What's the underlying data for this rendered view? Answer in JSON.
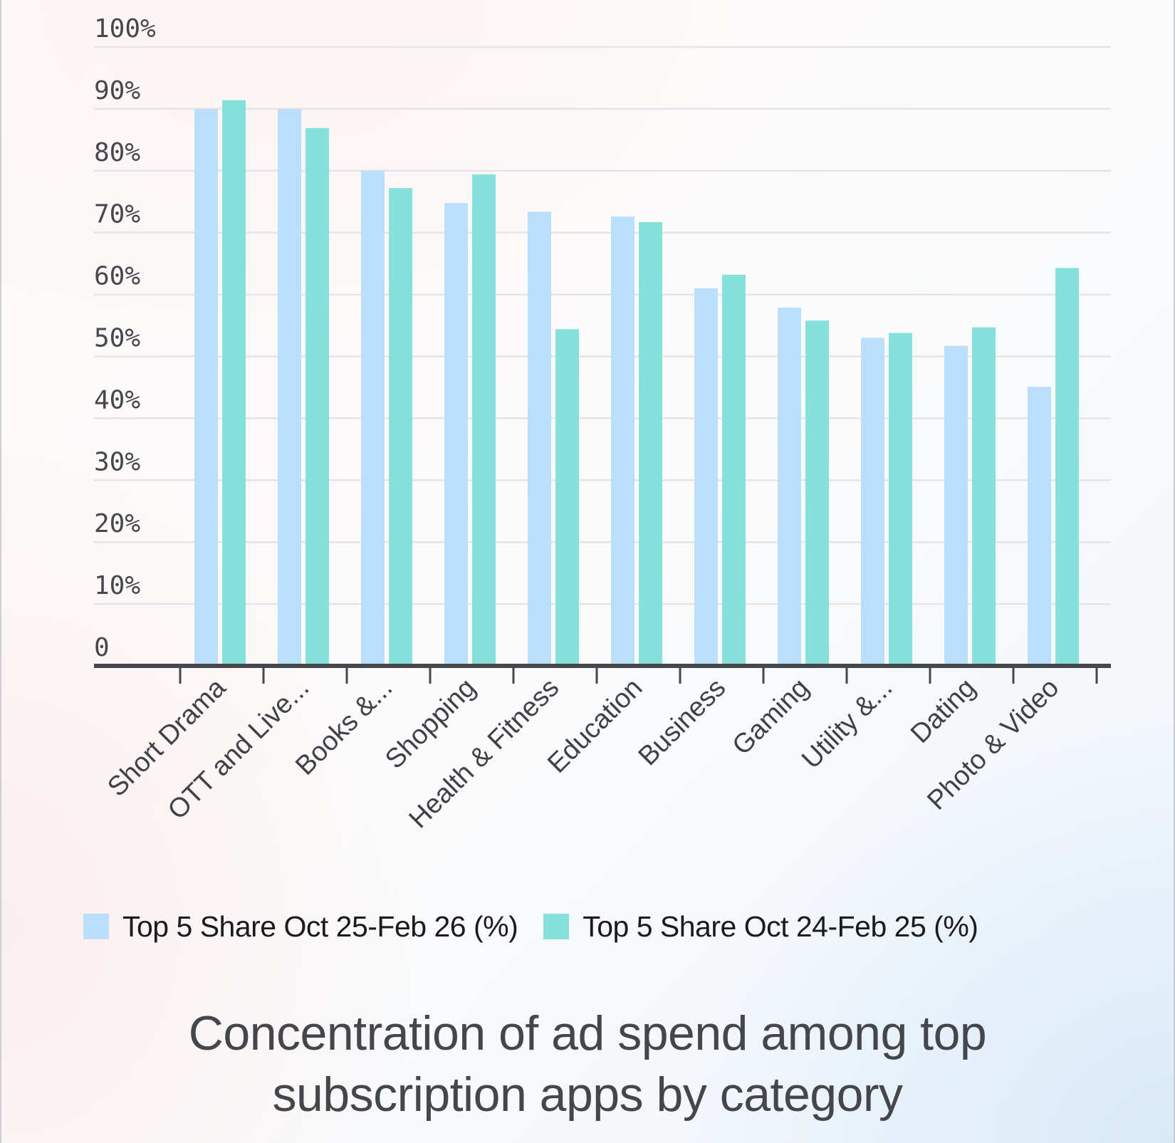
{
  "chart_data": {
    "type": "bar",
    "title": "Concentration of ad spend among top subscription apps by category",
    "title_lines": [
      "Concentration of ad spend among top",
      "subscription apps by category"
    ],
    "xlabel": "",
    "ylabel": "",
    "ylim": [
      0,
      100
    ],
    "yticks": [
      0,
      10,
      20,
      30,
      40,
      50,
      60,
      70,
      80,
      90,
      100
    ],
    "ytick_labels": [
      "0",
      "10%",
      "20%",
      "30%",
      "40%",
      "50%",
      "60%",
      "70%",
      "80%",
      "90%",
      "100%"
    ],
    "grid": true,
    "legend_position": "bottom",
    "categories": [
      "Short Drama",
      "OTT and Live...",
      "Books &...",
      "Shopping",
      "Health & Fitness",
      "Education",
      "Business",
      "Gaming",
      "Utility &...",
      "Dating",
      "Photo & Video"
    ],
    "series": [
      {
        "name": "Top 5 Share Oct 25-Feb 26 (%)",
        "color": "#bbdefb",
        "values": [
          90.0,
          90.0,
          80.0,
          74.8,
          73.4,
          72.6,
          61.0,
          57.9,
          53.0,
          51.7,
          45.1
        ]
      },
      {
        "name": "Top 5 Share Oct 24-Feb 25 (%)",
        "color": "#86e0dc",
        "values": [
          91.4,
          86.9,
          77.2,
          79.4,
          54.4,
          71.7,
          63.2,
          55.8,
          53.8,
          54.7,
          64.3
        ]
      }
    ]
  },
  "colors": {
    "axis": "#45474d",
    "grid": "#e6e4e4",
    "text": "#45474d"
  }
}
